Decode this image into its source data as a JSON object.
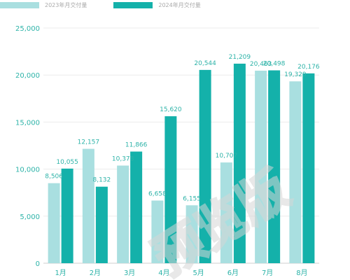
{
  "chart_data": {
    "type": "bar",
    "categories": [
      "1月",
      "2月",
      "3月",
      "4月",
      "5月",
      "6月",
      "7月",
      "8月"
    ],
    "series": [
      {
        "name": "2023年月交付量",
        "color": "#a9dfe0",
        "values": [
          8506,
          12157,
          10378,
          6658,
          6155,
          10707,
          20463,
          19329
        ],
        "labels": [
          "8,506",
          "12,157",
          "10,378",
          "6,658",
          "6,155",
          "10,707",
          "20,463",
          "19,329"
        ]
      },
      {
        "name": "2024年月交付量",
        "color": "#14b1aa",
        "values": [
          10055,
          8132,
          11866,
          15620,
          20544,
          21209,
          20498,
          20176
        ],
        "labels": [
          "10,055",
          "8,132",
          "11,866",
          "15,620",
          "20,544",
          "21,209",
          "20,498",
          "20,176"
        ]
      }
    ],
    "yticks": [
      0,
      5000,
      10000,
      15000,
      20000,
      25000
    ],
    "ytick_labels": [
      "0",
      "5,000",
      "10,000",
      "15,000",
      "20,000",
      "25,000"
    ],
    "ylim": [
      0,
      25000
    ],
    "grid": true,
    "legend": "top-left"
  },
  "watermark": "预览版"
}
